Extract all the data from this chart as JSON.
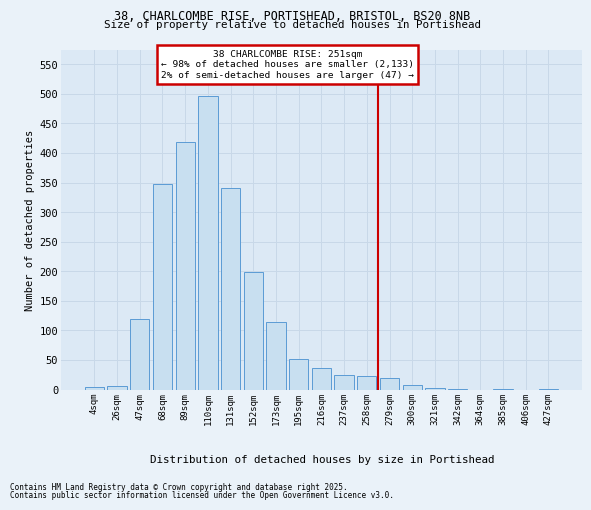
{
  "title_line1": "38, CHARLCOMBE RISE, PORTISHEAD, BRISTOL, BS20 8NB",
  "title_line2": "Size of property relative to detached houses in Portishead",
  "xlabel": "Distribution of detached houses by size in Portishead",
  "ylabel": "Number of detached properties",
  "bar_labels": [
    "4sqm",
    "26sqm",
    "47sqm",
    "68sqm",
    "89sqm",
    "110sqm",
    "131sqm",
    "152sqm",
    "173sqm",
    "195sqm",
    "216sqm",
    "237sqm",
    "258sqm",
    "279sqm",
    "300sqm",
    "321sqm",
    "342sqm",
    "364sqm",
    "385sqm",
    "406sqm",
    "427sqm"
  ],
  "bar_values": [
    5,
    6,
    120,
    348,
    419,
    497,
    340,
    198,
    115,
    52,
    37,
    25,
    22,
    20,
    8,
    2,
    1,
    0,
    1,
    0,
    1
  ],
  "bar_color": "#c8dff0",
  "bar_edge_color": "#5b9bd5",
  "vline_pos": 12.5,
  "vline_color": "#cc0000",
  "annotation_title": "38 CHARLCOMBE RISE: 251sqm",
  "annotation_line1": "← 98% of detached houses are smaller (2,133)",
  "annotation_line2": "2% of semi-detached houses are larger (47) →",
  "annotation_box_facecolor": "#ffffff",
  "annotation_box_edgecolor": "#cc0000",
  "ylim": [
    0,
    575
  ],
  "yticks": [
    0,
    50,
    100,
    150,
    200,
    250,
    300,
    350,
    400,
    450,
    500,
    550
  ],
  "footnote1": "Contains HM Land Registry data © Crown copyright and database right 2025.",
  "footnote2": "Contains public sector information licensed under the Open Government Licence v3.0.",
  "fig_bg_color": "#eaf2f9",
  "plot_bg_color": "#dce9f5",
  "grid_color": "#c8d8e8"
}
